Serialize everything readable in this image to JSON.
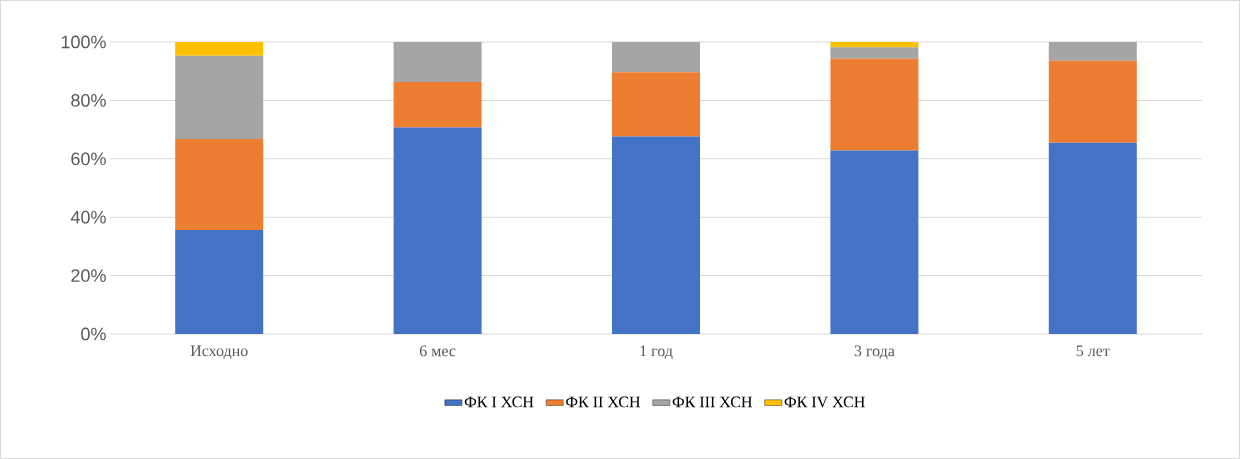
{
  "chart_data": {
    "type": "bar",
    "stacked": true,
    "categories": [
      "Исходно",
      "6 мес",
      "1 год",
      "3 года",
      "5 лет"
    ],
    "series": [
      {
        "name": "ФК I ХСН",
        "color": "#4472c4",
        "values": [
          35.6,
          70.7,
          67.6,
          62.8,
          65.5
        ]
      },
      {
        "name": "ФК II ХСН",
        "color": "#ed7d31",
        "values": [
          31.2,
          15.6,
          22.0,
          31.5,
          28.1
        ]
      },
      {
        "name": "ФК III ХСН",
        "color": "#a5a5a5",
        "values": [
          28.5,
          13.7,
          10.4,
          3.9,
          6.4
        ]
      },
      {
        "name": "ФК IV ХСН",
        "color": "#ffc000",
        "values": [
          4.7,
          null,
          null,
          1.8,
          null
        ]
      }
    ],
    "ylim": [
      0,
      100
    ],
    "yticks": [
      {
        "value": 0,
        "label": "0%"
      },
      {
        "value": 20,
        "label": "20%"
      },
      {
        "value": 40,
        "label": "40%"
      },
      {
        "value": 60,
        "label": "60%"
      },
      {
        "value": 80,
        "label": "80%"
      },
      {
        "value": 100,
        "label": "100%"
      }
    ],
    "grid": "y",
    "legend": "bottom"
  }
}
